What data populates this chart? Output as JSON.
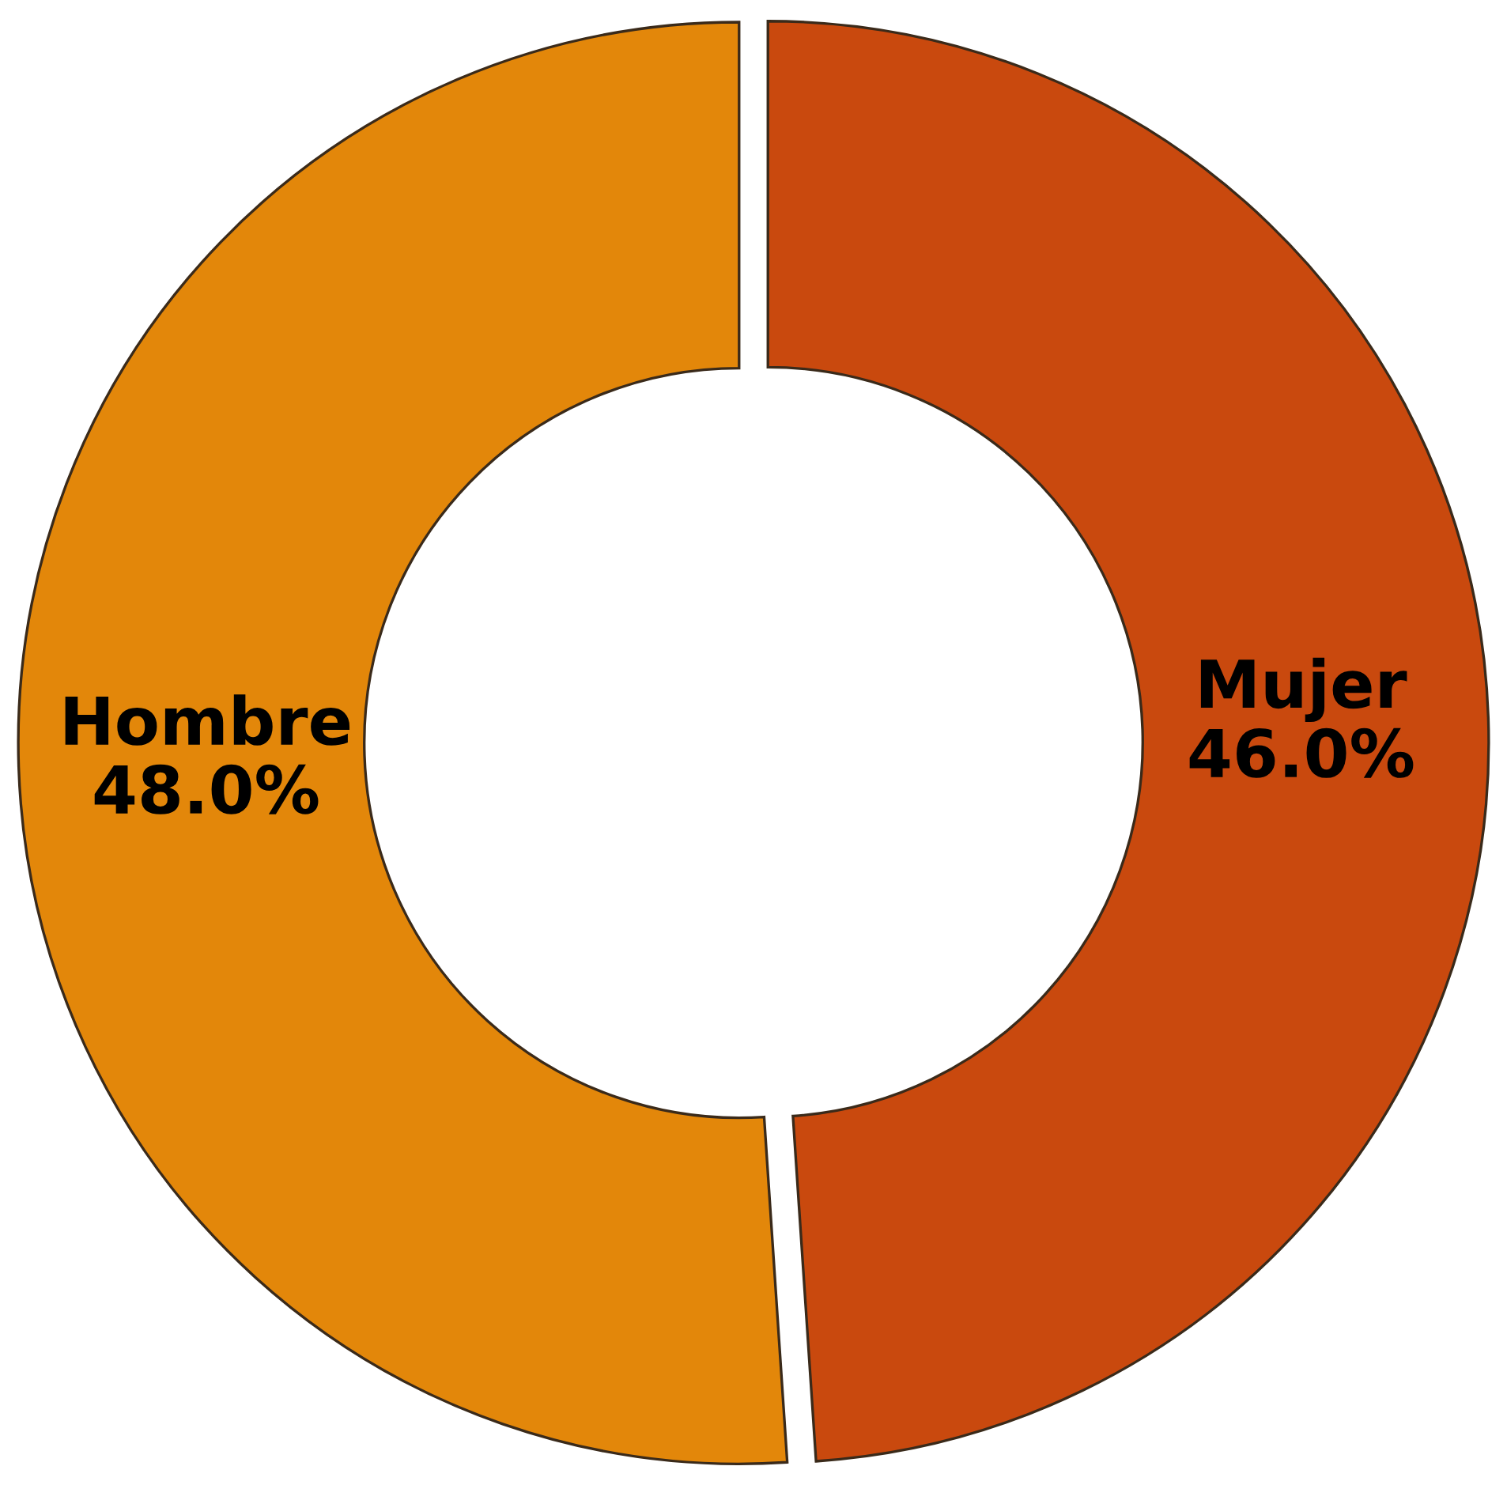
{
  "chart_data": {
    "type": "donut",
    "categories": [
      "Mujer",
      "Hombre"
    ],
    "values": [
      46.0,
      48.0
    ],
    "value_labels": [
      "46.0%",
      "48.0%"
    ],
    "colors": [
      "#c9490e",
      "#e3870a"
    ],
    "legend": false
  }
}
